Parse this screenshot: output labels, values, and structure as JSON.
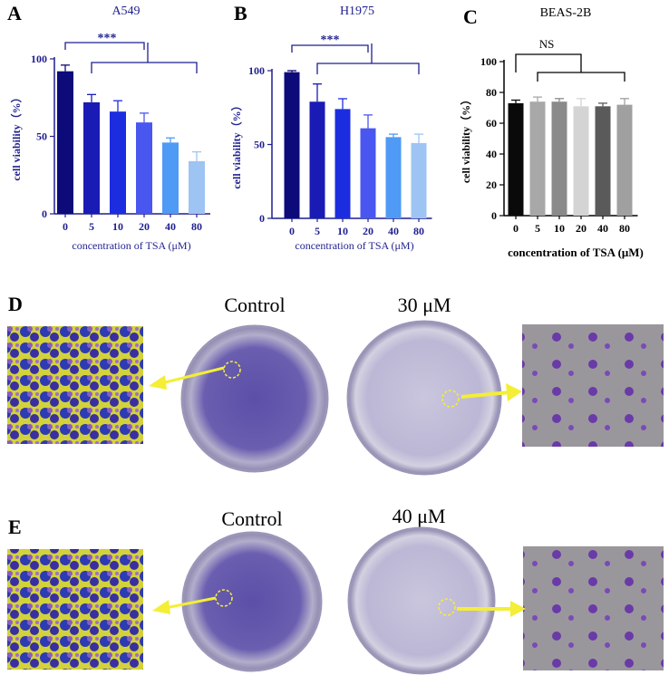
{
  "panels": {
    "A": "A",
    "B": "B",
    "C": "C",
    "D": "D",
    "E": "E"
  },
  "chart_data": [
    {
      "type": "bar",
      "panel": "A",
      "title": "A549",
      "categories": [
        "0",
        "5",
        "10",
        "20",
        "40",
        "80"
      ],
      "values": [
        92,
        72,
        66,
        59,
        46,
        34
      ],
      "errors": [
        4,
        5,
        7,
        6,
        3,
        6
      ],
      "xlabel": "concentration of TSA (μM)",
      "ylabel": "cell viability（%）",
      "ylim": [
        0,
        100
      ],
      "yticks": [
        "0",
        "50",
        "100"
      ],
      "colors": [
        "#0d0a7a",
        "#1a1bb4",
        "#1c2de0",
        "#4a56f0",
        "#4f9af4",
        "#9ec4f4"
      ],
      "significance": "***",
      "text_color": "#1f1f8f"
    },
    {
      "type": "bar",
      "panel": "B",
      "title": "H1975",
      "categories": [
        "0",
        "5",
        "10",
        "20",
        "40",
        "80"
      ],
      "values": [
        99,
        79,
        74,
        61,
        55,
        51
      ],
      "errors": [
        1,
        12,
        7,
        9,
        2,
        6
      ],
      "xlabel": "concentration of TSA (μM)",
      "ylabel": "cell viability（%）",
      "ylim": [
        0,
        100
      ],
      "yticks": [
        "0",
        "50",
        "100"
      ],
      "colors": [
        "#0d0a7a",
        "#1a1bb4",
        "#1c2de0",
        "#4a56f0",
        "#4f9af4",
        "#9ec4f4"
      ],
      "significance": "***",
      "text_color": "#1f1f8f"
    },
    {
      "type": "bar",
      "panel": "C",
      "title": "BEAS-2B",
      "categories": [
        "0",
        "5",
        "10",
        "20",
        "40",
        "80"
      ],
      "values": [
        73,
        74,
        74,
        71,
        71,
        72
      ],
      "errors": [
        2,
        3,
        2,
        5,
        2,
        4
      ],
      "xlabel": "concentration of TSA (μM)",
      "ylabel": "cell viability（%）",
      "ylim": [
        0,
        100
      ],
      "yticks": [
        "0",
        "20",
        "40",
        "60",
        "80",
        "100"
      ],
      "colors": [
        "#0a0a0a",
        "#a8a8a8",
        "#8a8a8a",
        "#d4d4d4",
        "#5a5a5a",
        "#a0a0a0"
      ],
      "significance": "NS",
      "text_color": "#000000"
    }
  ],
  "colony": {
    "row_d": {
      "left_label": "Control",
      "right_label": "30 μM"
    },
    "row_e": {
      "left_label": "Control",
      "right_label": "40 μM"
    }
  }
}
